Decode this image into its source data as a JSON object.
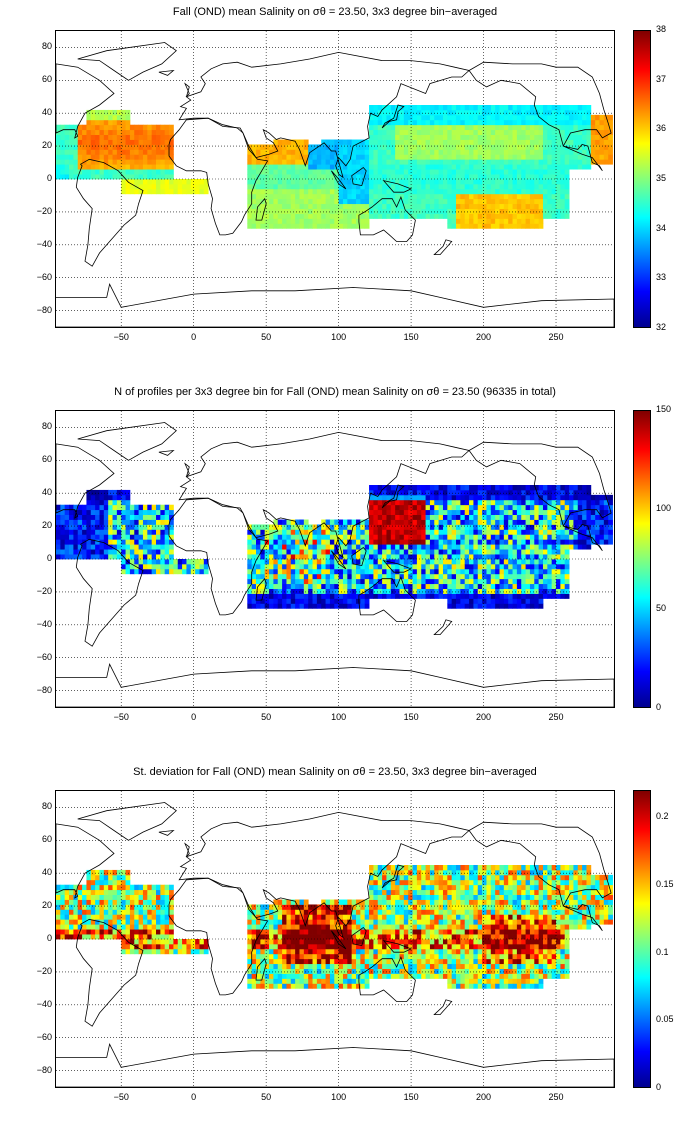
{
  "panels": [
    {
      "id": "salinity",
      "title": "Fall (OND) mean Salinity on σθ = 23.50, 3x3 degree bin−averaged",
      "colorbar_ticks": [
        "32",
        "33",
        "34",
        "35",
        "36",
        "37",
        "38"
      ],
      "colorbar_range": [
        32,
        38
      ]
    },
    {
      "id": "count",
      "title": "N of profiles per 3x3 degree bin for Fall (OND) mean Salinity on σθ = 23.50 (96335 in total)",
      "colorbar_ticks": [
        "0",
        "50",
        "100",
        "150"
      ],
      "colorbar_range": [
        0,
        150
      ]
    },
    {
      "id": "stdev",
      "title": "St. deviation for Fall (OND) mean Salinity on σθ = 23.50, 3x3 degree bin−averaged",
      "colorbar_ticks": [
        "0",
        "0.05",
        "0.1",
        "0.15",
        "0.2"
      ],
      "colorbar_range": [
        0,
        0.22
      ]
    }
  ],
  "axes": {
    "x_ticks": [
      "−50",
      "0",
      "50",
      "100",
      "150",
      "200",
      "250"
    ],
    "y_ticks": [
      "80",
      "60",
      "40",
      "20",
      "0",
      "−20",
      "−40",
      "−60",
      "−80"
    ],
    "lon_range": [
      -95,
      290
    ],
    "lat_range": [
      -90,
      90
    ],
    "grid": "dotted"
  },
  "colormap": "jet",
  "bin_size_deg": 3
}
